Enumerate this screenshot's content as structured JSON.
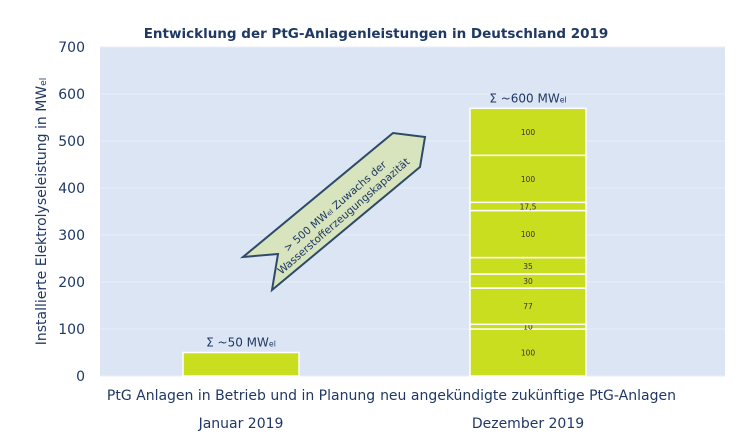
{
  "chart_data": {
    "type": "bar",
    "title": "Entwicklung der PtG-Anlagenleistungen in Deutschland 2019",
    "ylabel": "Installierte Elektrolyseleistung in MW",
    "ylabel_sub": "el",
    "ylim": [
      0,
      700
    ],
    "yticks": [
      "0",
      "100",
      "200",
      "300",
      "400",
      "500",
      "600",
      "700"
    ],
    "grid": true,
    "categories": [
      {
        "label": "PtG Anlagen in Betrieb und in Planung",
        "sublabel": "Januar 2019"
      },
      {
        "label": "neu angekündigte zukünftige PtG-Anlagen",
        "sublabel": "Dezember 2019"
      }
    ],
    "bars": [
      {
        "total_label": "Σ ~50 MW",
        "total_sub": "el",
        "segments": [
          50
        ],
        "segment_labels": [
          ""
        ]
      },
      {
        "total_label": "Σ ~600 MW",
        "total_sub": "el",
        "segments": [
          100,
          10,
          77,
          30,
          35,
          100,
          17.5,
          100,
          100
        ],
        "segment_labels": [
          "100",
          "10",
          "77",
          "30",
          "35",
          "100",
          "17,5",
          "100",
          "100"
        ]
      }
    ],
    "annotation": {
      "line1_a": "> 500 MW",
      "line1_sub": "el",
      "line1_b": " Zuwachs der",
      "line2": "Wasserstofferzeugungskapazität"
    },
    "colors": {
      "plot_bg": "#dbe5f4",
      "bar": "#c8de1f",
      "text": "#1f3864",
      "arrow_fill": "#d7e4bd",
      "arrow_stroke": "#2f4a68"
    }
  }
}
